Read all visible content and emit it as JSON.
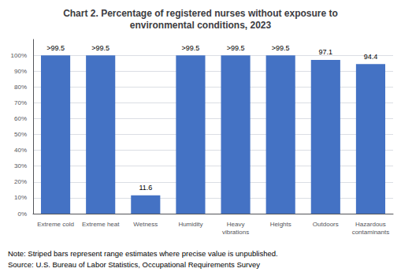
{
  "chart_data": {
    "type": "bar",
    "title": "Chart 2. Percentage of registered nurses without exposure to\nenvironmental conditions, 2023",
    "categories": [
      "Extreme cold",
      "Extreme heat",
      "Wetness",
      "Humidity",
      "Heavy\nvibrations",
      "Heights",
      "Outdoors",
      "Hazardous\ncontaminants"
    ],
    "values": [
      99.9,
      99.9,
      11.6,
      99.9,
      99.9,
      99.9,
      97.1,
      94.4
    ],
    "value_labels": [
      ">99.5",
      ">99.5",
      "11.6",
      ">99.5",
      ">99.5",
      ">99.5",
      "97.1",
      "94.4"
    ],
    "data_labels": true,
    "color": "#4472C4",
    "ylim": [
      0,
      110
    ],
    "yticks": [
      {
        "value": 0,
        "label": "0%"
      },
      {
        "value": 10,
        "label": "10%"
      },
      {
        "value": 20,
        "label": "20%"
      },
      {
        "value": 30,
        "label": "30%"
      },
      {
        "value": 40,
        "label": "40%"
      },
      {
        "value": 50,
        "label": "50%"
      },
      {
        "value": 60,
        "label": "60%"
      },
      {
        "value": 70,
        "label": "70%"
      },
      {
        "value": 80,
        "label": "80%"
      },
      {
        "value": 90,
        "label": "90%"
      },
      {
        "value": 100,
        "label": "100%"
      }
    ],
    "grid": true,
    "annotations": [
      "Note: Striped bars represent range estimates where precise value is unpublished.",
      "Source: U.S. Bureau of Labor Statistics, Occupational Requirements Survey"
    ]
  }
}
